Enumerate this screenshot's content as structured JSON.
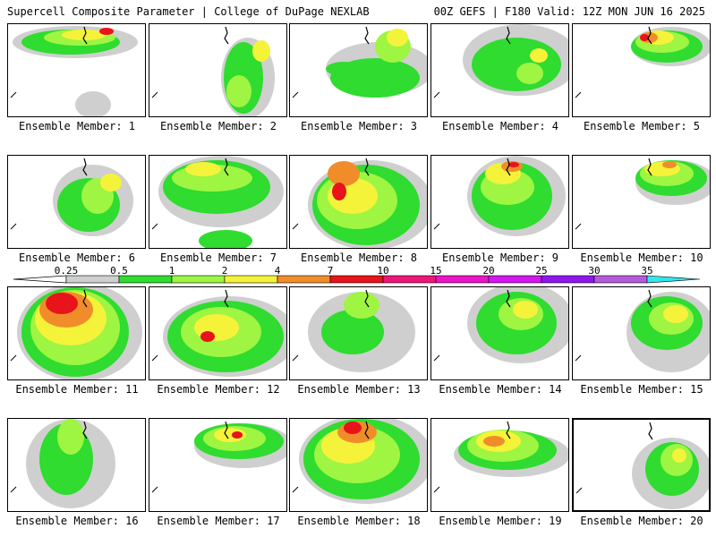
{
  "header": {
    "left": "Supercell Composite Parameter | College of DuPage NEXLAB",
    "right": "00Z GEFS | F180 Valid: 12Z MON JUN 16 2025"
  },
  "colorbar": {
    "levels": [
      "0.25",
      "0.5",
      "1",
      "2",
      "4",
      "7",
      "10",
      "15",
      "20",
      "25",
      "30",
      "35"
    ],
    "colors": [
      "#cfcfcf",
      "#2fdc2f",
      "#9ef542",
      "#f4f33a",
      "#f08d2a",
      "#e8131b",
      "#ee1679",
      "#ec14c7",
      "#d417f1",
      "#9016ee",
      "#b45bdc",
      "#32e6ee"
    ]
  },
  "members": [
    {
      "label": "Ensemble Member: 1"
    },
    {
      "label": "Ensemble Member: 2"
    },
    {
      "label": "Ensemble Member: 3"
    },
    {
      "label": "Ensemble Member: 4"
    },
    {
      "label": "Ensemble Member: 5"
    },
    {
      "label": "Ensemble Member: 6"
    },
    {
      "label": "Ensemble Member: 7"
    },
    {
      "label": "Ensemble Member: 8"
    },
    {
      "label": "Ensemble Member: 9"
    },
    {
      "label": "Ensemble Member: 10"
    },
    {
      "label": "Ensemble Member: 11"
    },
    {
      "label": "Ensemble Member: 12"
    },
    {
      "label": "Ensemble Member: 13"
    },
    {
      "label": "Ensemble Member: 14"
    },
    {
      "label": "Ensemble Member: 15"
    },
    {
      "label": "Ensemble Member: 16"
    },
    {
      "label": "Ensemble Member: 17"
    },
    {
      "label": "Ensemble Member: 18"
    },
    {
      "label": "Ensemble Member: 19"
    },
    {
      "label": "Ensemble Member: 20",
      "selected": true
    }
  ]
}
